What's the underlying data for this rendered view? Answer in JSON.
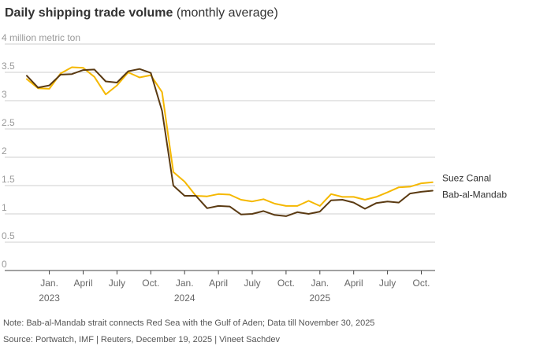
{
  "header": {
    "title": "Daily shipping trade volume",
    "subtitle": "(monthly average)"
  },
  "footer": {
    "note": "Note: Bab-al-Mandab strait connects Red Sea with the Gulf of Aden; Data till November 30, 2025",
    "source": "Source: Portwatch, IMF | Reuters, December 19, 2025  | Vineet Sachdev"
  },
  "colors": {
    "suez": "#f5b800",
    "mandab": "#5a3a12",
    "grid": "#cfcfcf",
    "axis": "#444444",
    "tick_text": "#666666",
    "ylabel_text": "#999999"
  },
  "chart_data": {
    "type": "line",
    "title": "Daily shipping trade volume (monthly average)",
    "ylabel": "4 million metric ton",
    "ylim": [
      0,
      4
    ],
    "yticks": [
      {
        "value": 0,
        "label": "0"
      },
      {
        "value": 0.5,
        "label": "0.5"
      },
      {
        "value": 1,
        "label": "1"
      },
      {
        "value": 1.5,
        "label": "1.5"
      },
      {
        "value": 2,
        "label": "2"
      },
      {
        "value": 2.5,
        "label": "2.5"
      },
      {
        "value": 3,
        "label": "3"
      },
      {
        "value": 3.5,
        "label": "3.5"
      },
      {
        "value": 4,
        "label": "4 million metric ton"
      }
    ],
    "x": [
      "2022-11",
      "2022-12",
      "2023-01",
      "2023-02",
      "2023-03",
      "2023-04",
      "2023-05",
      "2023-06",
      "2023-07",
      "2023-08",
      "2023-09",
      "2023-10",
      "2023-11",
      "2023-12",
      "2024-01",
      "2024-02",
      "2024-03",
      "2024-04",
      "2024-05",
      "2024-06",
      "2024-07",
      "2024-08",
      "2024-09",
      "2024-10",
      "2024-11",
      "2024-12",
      "2025-01",
      "2025-02",
      "2025-03",
      "2025-04",
      "2025-05",
      "2025-06",
      "2025-07",
      "2025-08",
      "2025-09",
      "2025-10",
      "2025-11"
    ],
    "xlim": [
      "2022-11",
      "2025-11"
    ],
    "xticks": [
      {
        "month": "2023-01",
        "label": "Jan.",
        "year": "2023"
      },
      {
        "month": "2023-04",
        "label": "April",
        "year": ""
      },
      {
        "month": "2023-07",
        "label": "July",
        "year": ""
      },
      {
        "month": "2023-10",
        "label": "Oct.",
        "year": ""
      },
      {
        "month": "2024-01",
        "label": "Jan.",
        "year": "2024"
      },
      {
        "month": "2024-04",
        "label": "April",
        "year": ""
      },
      {
        "month": "2024-07",
        "label": "July",
        "year": ""
      },
      {
        "month": "2024-10",
        "label": "Oct.",
        "year": ""
      },
      {
        "month": "2025-01",
        "label": "Jan.",
        "year": "2025"
      },
      {
        "month": "2025-04",
        "label": "April",
        "year": ""
      },
      {
        "month": "2025-07",
        "label": "July",
        "year": ""
      },
      {
        "month": "2025-10",
        "label": "Oct.",
        "year": ""
      }
    ],
    "series": [
      {
        "name": "Suez Canal",
        "color": "#f5b800",
        "values": [
          3.38,
          3.22,
          3.21,
          3.48,
          3.59,
          3.58,
          3.42,
          3.11,
          3.27,
          3.5,
          3.41,
          3.45,
          3.15,
          1.74,
          1.57,
          1.32,
          1.31,
          1.35,
          1.34,
          1.25,
          1.22,
          1.26,
          1.18,
          1.14,
          1.14,
          1.23,
          1.14,
          1.35,
          1.3,
          1.3,
          1.25,
          1.3,
          1.38,
          1.47,
          1.48,
          1.54,
          1.56
        ]
      },
      {
        "name": "Bab-al-Mandab",
        "color": "#5a3a12",
        "values": [
          3.44,
          3.23,
          3.27,
          3.46,
          3.47,
          3.54,
          3.55,
          3.34,
          3.32,
          3.52,
          3.56,
          3.49,
          2.82,
          1.5,
          1.32,
          1.32,
          1.1,
          1.14,
          1.13,
          0.99,
          1.0,
          1.05,
          0.98,
          0.96,
          1.03,
          1.0,
          1.04,
          1.24,
          1.25,
          1.2,
          1.09,
          1.19,
          1.22,
          1.2,
          1.36,
          1.39,
          1.41
        ]
      }
    ]
  }
}
